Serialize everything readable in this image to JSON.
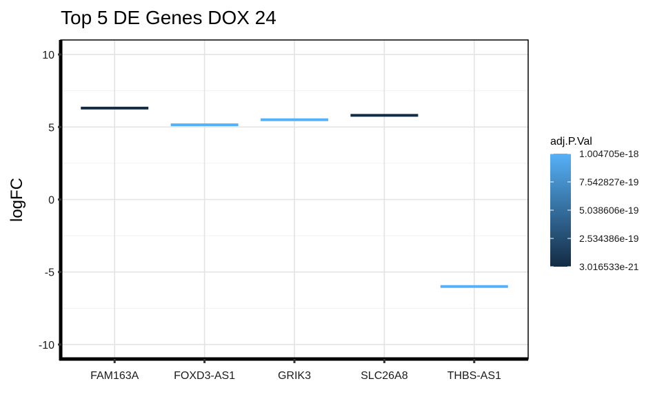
{
  "chart_data": {
    "type": "bar",
    "title": "Top 5 DE Genes DOX 24",
    "xlabel": "",
    "ylabel": "logFC",
    "ylim": [
      -11,
      11
    ],
    "yticks": [
      10,
      5,
      0,
      -5,
      -10
    ],
    "grid": true,
    "legend_position": "right",
    "categories": [
      "FAM163A",
      "FOXD3-AS1",
      "GRIK3",
      "SLC26A8",
      "THBS-AS1"
    ],
    "values": [
      6.3,
      5.15,
      5.5,
      5.8,
      -6.0
    ],
    "adj_p_values": [
      3.016533e-21,
      1.004705e-18,
      1.004705e-18,
      3.016533e-21,
      1.004705e-18
    ],
    "colorbar": {
      "title": "adj.P.Val",
      "min": 3.016533e-21,
      "max": 1.004705e-18,
      "low_color": "#132B43",
      "high_color": "#56B1F7",
      "tick_labels": [
        "1.004705e-18",
        "7.542827e-19",
        "5.038606e-19",
        "2.534386e-19",
        "3.016533e-21"
      ],
      "tick_values": [
        1.004705e-18,
        7.542827e-19,
        5.038606e-19,
        2.534386e-19,
        3.016533e-21
      ]
    }
  }
}
